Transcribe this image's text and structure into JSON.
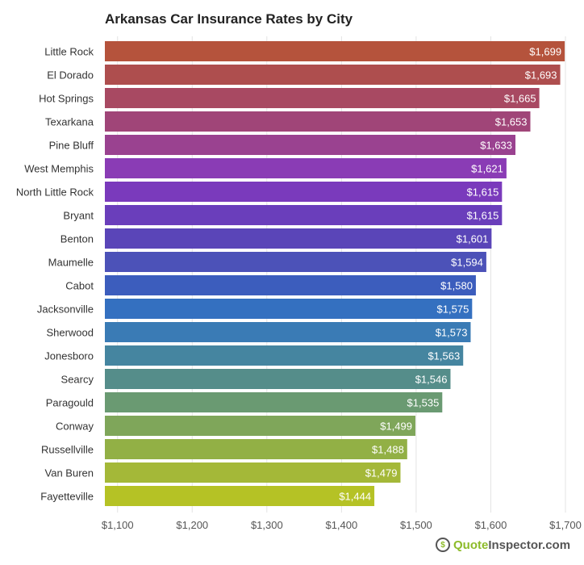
{
  "chart_data": {
    "type": "bar",
    "orientation": "horizontal",
    "title": "Arkansas Car Insurance Rates by City",
    "categories": [
      "Little Rock",
      "El Dorado",
      "Hot Springs",
      "Texarkana",
      "Pine Bluff",
      "West Memphis",
      "North Little Rock",
      "Bryant",
      "Benton",
      "Maumelle",
      "Cabot",
      "Jacksonville",
      "Sherwood",
      "Jonesboro",
      "Searcy",
      "Paragould",
      "Conway",
      "Russellville",
      "Van Buren",
      "Fayetteville"
    ],
    "values": [
      1699,
      1693,
      1665,
      1653,
      1633,
      1621,
      1615,
      1615,
      1601,
      1594,
      1580,
      1575,
      1573,
      1563,
      1546,
      1535,
      1499,
      1488,
      1479,
      1444
    ],
    "data_labels": [
      "$1,699",
      "$1,693",
      "$1,665",
      "$1,653",
      "$1,633",
      "$1,621",
      "$1,615",
      "$1,615",
      "$1,601",
      "$1,594",
      "$1,580",
      "$1,575",
      "$1,573",
      "$1,563",
      "$1,546",
      "$1,535",
      "$1,499",
      "$1,488",
      "$1,479",
      "$1,444"
    ],
    "colors": [
      "#b5533c",
      "#ae4e4e",
      "#a84962",
      "#a04578",
      "#9a4290",
      "#8a3cb5",
      "#7a3abc",
      "#6a3ebb",
      "#5a45b8",
      "#4c52b8",
      "#3c5dbd",
      "#3470c0",
      "#3a7bb5",
      "#4585a0",
      "#558d8a",
      "#6a9a72",
      "#7fa65a",
      "#92b045",
      "#a4b838",
      "#b5c225"
    ],
    "x_ticks": [
      1100,
      1200,
      1300,
      1400,
      1500,
      1600,
      1700
    ],
    "x_tick_labels": [
      "$1,100",
      "$1,200",
      "$1,300",
      "$1,400",
      "$1,500",
      "$1,600",
      "$1,700"
    ],
    "xlim": [
      1083,
      1700
    ],
    "grid": true,
    "xlabel": "",
    "ylabel": ""
  },
  "logo": {
    "part1": "Quote",
    "part2": "Inspector.com",
    "icon": "dollar-magnifier-icon"
  }
}
